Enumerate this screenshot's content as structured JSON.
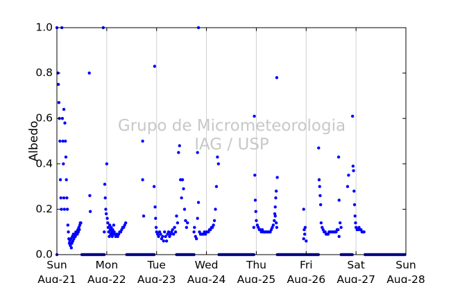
{
  "chart_data": {
    "type": "scatter",
    "title": "",
    "xlabel": "",
    "ylabel": "Albedo",
    "ylim": [
      0.0,
      1.0
    ],
    "x_range_days": [
      "2006-08-21",
      "2006-08-28"
    ],
    "x_scale_note_text": "",
    "yticks": [
      "0.0",
      "0.2",
      "0.4",
      "0.6",
      "0.8",
      "1.0"
    ],
    "ytick_values": [
      0.0,
      0.2,
      0.4,
      0.6,
      0.8,
      1.0
    ],
    "xticks": [
      {
        "day": "Sun",
        "date": "Aug-21"
      },
      {
        "day": "Mon",
        "date": "Aug-22"
      },
      {
        "day": "Tue",
        "date": "Aug-23"
      },
      {
        "day": "Wed",
        "date": "Aug-24"
      },
      {
        "day": "Thu",
        "date": "Aug-25"
      },
      {
        "day": "Fri",
        "date": "Aug-26"
      },
      {
        "day": "Sat",
        "date": "Aug-27"
      },
      {
        "day": "Sun",
        "date": "Aug-28"
      }
    ],
    "grid": "vertical",
    "marker_color": "#0000ff",
    "watermark": [
      "Grupo de Micrometeorologia",
      "IAG / USP"
    ],
    "series": [
      {
        "values": [
          [
            0.0,
            1.0
          ],
          [
            0.02,
            0.8
          ],
          [
            0.03,
            0.75
          ],
          [
            0.04,
            0.67
          ],
          [
            0.05,
            0.6
          ],
          [
            0.06,
            0.5
          ],
          [
            0.07,
            0.33
          ],
          [
            0.08,
            0.25
          ],
          [
            0.09,
            0.2
          ],
          [
            0.1,
            1.0
          ],
          [
            0.11,
            0.6
          ],
          [
            0.12,
            0.5
          ],
          [
            0.13,
            0.4
          ],
          [
            0.14,
            0.25
          ],
          [
            0.15,
            0.2
          ],
          [
            0.16,
            0.58
          ],
          [
            0.17,
            0.5
          ],
          [
            0.18,
            0.43
          ],
          [
            0.19,
            0.33
          ],
          [
            0.2,
            0.25
          ],
          [
            0.21,
            0.2
          ],
          [
            0.22,
            0.13
          ],
          [
            0.23,
            0.1
          ],
          [
            0.24,
            0.07
          ],
          [
            0.25,
            0.05
          ],
          [
            0.26,
            0.06
          ],
          [
            0.27,
            0.04
          ],
          [
            0.28,
            0.07
          ],
          [
            0.29,
            0.03
          ],
          [
            0.3,
            0.05
          ],
          [
            0.31,
            0.08
          ],
          [
            0.32,
            0.06
          ],
          [
            0.33,
            0.09
          ],
          [
            0.34,
            0.07
          ],
          [
            0.35,
            0.08
          ],
          [
            0.36,
            0.09
          ],
          [
            0.37,
            0.08
          ],
          [
            0.38,
            0.1
          ],
          [
            0.39,
            0.09
          ],
          [
            0.4,
            0.1
          ],
          [
            0.41,
            0.09
          ],
          [
            0.42,
            0.11
          ],
          [
            0.43,
            0.1
          ],
          [
            0.44,
            0.12
          ],
          [
            0.45,
            0.11
          ],
          [
            0.46,
            0.13
          ],
          [
            0.47,
            0.14
          ],
          [
            0.48,
            0.14
          ],
          [
            0.65,
            0.8
          ],
          [
            0.66,
            0.26
          ],
          [
            0.67,
            0.19
          ],
          [
            0.14,
            0.64
          ],
          [
            0.95,
            0.1
          ],
          [
            0.96,
            0.31
          ],
          [
            0.97,
            0.25
          ],
          [
            0.98,
            0.2
          ],
          [
            0.99,
            0.18
          ],
          [
            1.0,
            0.4
          ],
          [
            1.01,
            0.16
          ],
          [
            1.02,
            0.14
          ],
          [
            1.03,
            0.12
          ],
          [
            1.04,
            0.1
          ],
          [
            1.05,
            0.08
          ],
          [
            1.06,
            0.13
          ],
          [
            1.07,
            0.11
          ],
          [
            1.08,
            0.09
          ],
          [
            1.09,
            0.12
          ],
          [
            1.1,
            0.1
          ],
          [
            1.11,
            0.08
          ],
          [
            1.12,
            0.11
          ],
          [
            1.13,
            0.09
          ],
          [
            1.14,
            0.13
          ],
          [
            1.15,
            0.1
          ],
          [
            1.16,
            0.09
          ],
          [
            1.18,
            0.08
          ],
          [
            1.2,
            0.09
          ],
          [
            1.22,
            0.08
          ],
          [
            1.24,
            0.09
          ],
          [
            1.26,
            0.1
          ],
          [
            1.28,
            0.1
          ],
          [
            1.3,
            0.11
          ],
          [
            1.32,
            0.12
          ],
          [
            1.34,
            0.12
          ],
          [
            1.36,
            0.13
          ],
          [
            1.38,
            0.14
          ],
          [
            1.72,
            0.33
          ],
          [
            1.74,
            0.17
          ],
          [
            1.72,
            0.5
          ],
          [
            0.93,
            1.0
          ],
          [
            1.95,
            0.3
          ],
          [
            1.96,
            0.83
          ],
          [
            1.97,
            0.21
          ],
          [
            1.98,
            0.16
          ],
          [
            1.99,
            0.12
          ],
          [
            2.0,
            0.1
          ],
          [
            2.02,
            0.09
          ],
          [
            2.04,
            0.08
          ],
          [
            2.06,
            0.1
          ],
          [
            2.08,
            0.09
          ],
          [
            2.1,
            0.07
          ],
          [
            2.12,
            0.08
          ],
          [
            2.14,
            0.06
          ],
          [
            2.16,
            0.1
          ],
          [
            2.18,
            0.08
          ],
          [
            2.2,
            0.06
          ],
          [
            2.22,
            0.09
          ],
          [
            2.24,
            0.1
          ],
          [
            2.26,
            0.08
          ],
          [
            2.28,
            0.09
          ],
          [
            2.3,
            0.1
          ],
          [
            2.32,
            0.11
          ],
          [
            2.34,
            0.09
          ],
          [
            2.36,
            0.12
          ],
          [
            2.38,
            0.1
          ],
          [
            2.4,
            0.17
          ],
          [
            2.42,
            0.14
          ],
          [
            2.44,
            0.45
          ],
          [
            2.46,
            0.48
          ],
          [
            2.48,
            0.33
          ],
          [
            2.5,
            0.25
          ],
          [
            2.52,
            0.33
          ],
          [
            2.54,
            0.29
          ],
          [
            2.56,
            0.2
          ],
          [
            2.58,
            0.15
          ],
          [
            2.6,
            0.12
          ],
          [
            2.62,
            0.14
          ],
          [
            2.75,
            0.1
          ],
          [
            2.76,
            0.12
          ],
          [
            2.78,
            0.08
          ],
          [
            2.8,
            0.07
          ],
          [
            2.82,
            0.16
          ],
          [
            2.84,
            0.23
          ],
          [
            2.86,
            0.1
          ],
          [
            2.88,
            0.09
          ],
          [
            2.9,
            0.09
          ],
          [
            2.92,
            0.09
          ],
          [
            2.94,
            0.09
          ],
          [
            2.96,
            0.1
          ],
          [
            2.98,
            0.09
          ],
          [
            3.0,
            0.1
          ],
          [
            3.02,
            0.1
          ],
          [
            3.04,
            0.1
          ],
          [
            3.06,
            0.11
          ],
          [
            3.08,
            0.11
          ],
          [
            3.1,
            0.12
          ],
          [
            3.12,
            0.12
          ],
          [
            3.14,
            0.13
          ],
          [
            3.16,
            0.15
          ],
          [
            3.18,
            0.2
          ],
          [
            3.2,
            0.3
          ],
          [
            3.22,
            0.43
          ],
          [
            3.24,
            0.4
          ],
          [
            2.84,
            1.0
          ],
          [
            2.82,
            0.45
          ],
          [
            3.95,
            0.12
          ],
          [
            3.96,
            0.61
          ],
          [
            3.97,
            0.35
          ],
          [
            3.98,
            0.24
          ],
          [
            3.99,
            0.19
          ],
          [
            4.0,
            0.15
          ],
          [
            4.02,
            0.13
          ],
          [
            4.04,
            0.12
          ],
          [
            4.06,
            0.11
          ],
          [
            4.08,
            0.11
          ],
          [
            4.1,
            0.1
          ],
          [
            4.12,
            0.11
          ],
          [
            4.14,
            0.1
          ],
          [
            4.16,
            0.1
          ],
          [
            4.18,
            0.1
          ],
          [
            4.2,
            0.1
          ],
          [
            4.22,
            0.1
          ],
          [
            4.24,
            0.1
          ],
          [
            4.26,
            0.1
          ],
          [
            4.28,
            0.1
          ],
          [
            4.3,
            0.11
          ],
          [
            4.32,
            0.12
          ],
          [
            4.34,
            0.13
          ],
          [
            4.36,
            0.15
          ],
          [
            4.37,
            0.18
          ],
          [
            4.38,
            0.21
          ],
          [
            4.39,
            0.25
          ],
          [
            4.4,
            0.28
          ],
          [
            4.41,
            0.78
          ],
          [
            4.42,
            0.34
          ],
          [
            4.38,
            0.17
          ],
          [
            4.4,
            0.14
          ],
          [
            4.41,
            0.12
          ],
          [
            4.95,
            0.07
          ],
          [
            4.96,
            0.11
          ],
          [
            4.97,
            0.09
          ],
          [
            4.98,
            0.12
          ],
          [
            5.0,
            0.06
          ],
          [
            4.95,
            0.2
          ],
          [
            5.25,
            0.47
          ],
          [
            5.26,
            0.33
          ],
          [
            5.27,
            0.3
          ],
          [
            5.28,
            0.26
          ],
          [
            5.29,
            0.22
          ],
          [
            5.3,
            0.14
          ],
          [
            5.32,
            0.12
          ],
          [
            5.34,
            0.11
          ],
          [
            5.36,
            0.1
          ],
          [
            5.38,
            0.1
          ],
          [
            5.4,
            0.09
          ],
          [
            5.42,
            0.09
          ],
          [
            5.44,
            0.09
          ],
          [
            5.46,
            0.1
          ],
          [
            5.48,
            0.1
          ],
          [
            5.5,
            0.1
          ],
          [
            5.52,
            0.1
          ],
          [
            5.54,
            0.1
          ],
          [
            5.56,
            0.1
          ],
          [
            5.58,
            0.1
          ],
          [
            5.6,
            0.1
          ],
          [
            5.62,
            0.11
          ],
          [
            5.64,
            0.11
          ],
          [
            5.65,
            0.43
          ],
          [
            5.66,
            0.24
          ],
          [
            5.68,
            0.14
          ],
          [
            5.7,
            0.12
          ],
          [
            5.66,
            0.08
          ],
          [
            5.93,
            0.61
          ],
          [
            5.94,
            0.39
          ],
          [
            5.95,
            0.37
          ],
          [
            5.96,
            0.28
          ],
          [
            5.97,
            0.22
          ],
          [
            5.98,
            0.17
          ],
          [
            5.99,
            0.14
          ],
          [
            6.0,
            0.12
          ],
          [
            6.02,
            0.11
          ],
          [
            6.04,
            0.11
          ],
          [
            6.06,
            0.12
          ],
          [
            6.08,
            0.11
          ],
          [
            6.1,
            0.11
          ],
          [
            6.12,
            0.1
          ],
          [
            6.14,
            0.1
          ],
          [
            6.16,
            0.1
          ],
          [
            5.85,
            0.35
          ],
          [
            5.83,
            0.3
          ]
        ],
        "zero_runs_days": [
          [
            0.0,
            0.0
          ],
          [
            0.5,
            0.95
          ],
          [
            1.4,
            1.95
          ],
          [
            2.4,
            2.75
          ],
          [
            3.25,
            3.95
          ],
          [
            4.42,
            5.25
          ],
          [
            5.7,
            5.93
          ],
          [
            6.18,
            7.0
          ]
        ]
      }
    ]
  }
}
